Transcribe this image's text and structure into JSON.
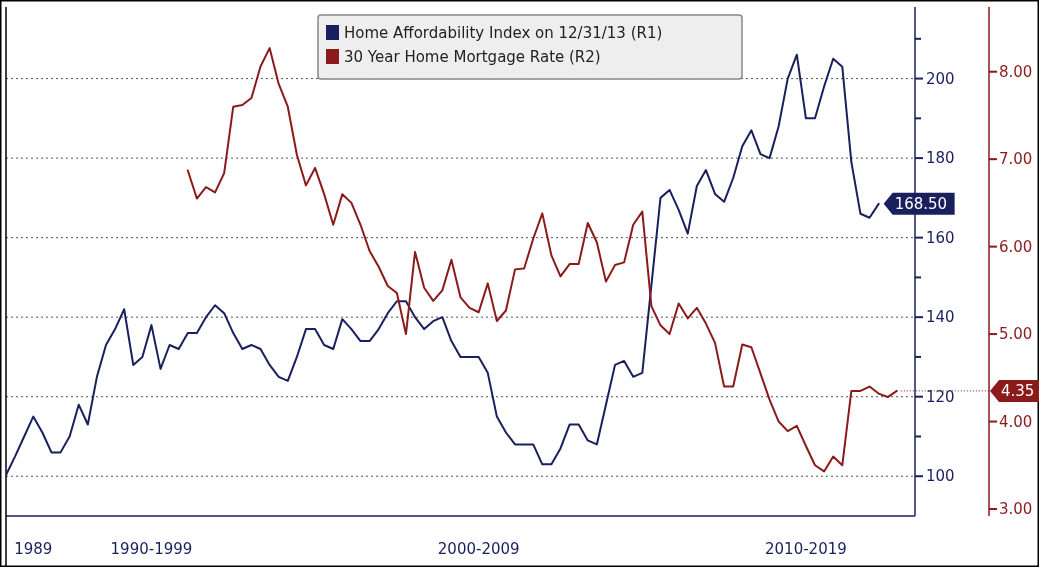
{
  "chart_data": {
    "type": "line",
    "categories": [
      null,
      null,
      null,
      "1989",
      null,
      null,
      null,
      null,
      null,
      null,
      null,
      null,
      null,
      null,
      null,
      null,
      "1990-1999",
      null,
      null,
      null,
      null,
      null,
      null,
      null,
      null,
      null,
      null,
      null,
      null,
      null,
      null,
      null,
      null,
      null,
      null,
      null,
      null,
      null,
      null,
      null,
      null,
      null,
      null,
      null,
      null,
      null,
      null,
      null,
      null,
      null,
      null,
      null,
      "2000-2009",
      null,
      null,
      null,
      null,
      null,
      null,
      null,
      null,
      null,
      null,
      null,
      null,
      null,
      null,
      null,
      null,
      null,
      null,
      null,
      null,
      null,
      null,
      null,
      null,
      null,
      null,
      null,
      null,
      null,
      null,
      null,
      null,
      null,
      null,
      null,
      "2010-2019",
      null,
      null,
      null,
      null,
      null,
      null,
      null,
      null,
      null,
      null,
      null,
      null
    ],
    "ylim": [
      90,
      218
    ],
    "yticks": [
      100,
      {
        "value": 110,
        "label": null
      },
      120,
      {
        "value": 130,
        "label": null
      },
      140,
      {
        "value": 150,
        "label": null
      },
      160,
      {
        "value": 170,
        "label": null
      },
      180,
      {
        "value": 190,
        "label": null
      },
      200,
      {
        "value": 210,
        "label": null
      }
    ],
    "y2lim": [
      2.92,
      8.74
    ],
    "y2ticks": [
      {
        "value": 3,
        "label": "3.00"
      },
      {
        "value": 4,
        "label": "4.00"
      },
      {
        "value": 5,
        "label": "5.00"
      },
      {
        "value": 6,
        "label": "6.00"
      },
      {
        "value": 7,
        "label": "7.00"
      },
      {
        "value": 8,
        "label": "8.00"
      }
    ],
    "grid": "y",
    "legend": "top",
    "series": [
      {
        "name": "Home Affordability Index on 12/31/13 (R1)",
        "color": "#1a1f5e",
        "values": [
          100.3,
          105,
          110,
          115,
          111,
          106,
          106,
          110,
          118,
          113,
          125,
          133,
          137,
          142,
          128,
          130,
          138,
          127,
          133,
          132,
          136,
          136,
          140,
          143,
          141,
          136,
          132,
          133,
          132,
          128,
          125,
          124,
          130,
          137,
          137,
          133,
          132,
          139.5,
          137,
          134,
          134,
          137,
          141,
          144,
          144,
          140,
          137,
          139,
          140,
          134,
          130,
          130,
          130,
          126,
          115,
          111,
          108,
          108,
          108,
          103,
          103,
          107,
          113,
          113,
          109,
          108,
          118,
          128,
          129,
          125,
          126,
          148,
          170,
          172,
          167,
          161,
          173,
          177,
          171,
          169,
          175,
          183,
          187,
          181,
          180,
          188,
          200,
          206,
          190,
          190,
          198,
          205,
          203,
          179,
          166,
          165,
          168.5,
          null,
          null,
          null,
          null
        ],
        "value_labels": [
          null,
          null,
          null,
          null,
          null,
          null,
          null,
          null,
          null,
          null,
          null,
          null,
          null,
          null,
          null,
          null,
          null,
          null,
          null,
          null,
          null,
          null,
          null,
          null,
          null,
          null,
          null,
          null,
          null,
          null,
          null,
          null,
          null,
          null,
          null,
          null,
          null,
          null,
          null,
          null,
          null,
          null,
          null,
          null,
          null,
          null,
          null,
          null,
          null,
          null,
          null,
          null,
          null,
          null,
          null,
          null,
          null,
          null,
          null,
          null,
          null,
          null,
          null,
          null,
          null,
          null,
          null,
          null,
          null,
          null,
          null,
          null,
          null,
          null,
          null,
          null,
          null,
          null,
          null,
          null,
          null,
          null,
          null,
          null,
          null,
          null,
          null,
          null,
          null,
          null,
          null,
          null,
          null,
          null,
          null,
          null,
          "168.50",
          null,
          null,
          null,
          null
        ]
      },
      {
        "name": "30 Year Home Mortgage Rate (R2)",
        "color": "#8b1a1a",
        "axis": "y2",
        "values": [
          null,
          null,
          null,
          null,
          null,
          null,
          null,
          null,
          null,
          null,
          null,
          null,
          null,
          null,
          null,
          null,
          null,
          null,
          null,
          null,
          6.87,
          6.55,
          6.68,
          6.62,
          6.84,
          7.6,
          7.62,
          7.7,
          8.06,
          8.27,
          7.86,
          7.6,
          7.05,
          6.7,
          6.9,
          6.6,
          6.25,
          6.6,
          6.5,
          6.25,
          5.95,
          5.77,
          5.55,
          5.47,
          5.0,
          5.94,
          5.53,
          5.38,
          5.5,
          5.85,
          5.42,
          5.3,
          5.25,
          5.58,
          5.15,
          5.27,
          5.74,
          5.75,
          6.09,
          6.38,
          5.9,
          5.66,
          5.8,
          5.8,
          6.27,
          6.05,
          5.6,
          5.79,
          5.82,
          6.25,
          6.4,
          5.32,
          5.1,
          5.0,
          5.35,
          5.18,
          5.3,
          5.12,
          4.9,
          4.4,
          4.4,
          4.88,
          4.85,
          4.55,
          4.25,
          4.0,
          3.89,
          3.95,
          3.72,
          3.5,
          3.43,
          3.6,
          3.5,
          4.35,
          4.35,
          4.4,
          4.32,
          4.28,
          4.35,
          null,
          null
        ],
        "value_labels": [
          null,
          null,
          null,
          null,
          null,
          null,
          null,
          null,
          null,
          null,
          null,
          null,
          null,
          null,
          null,
          null,
          null,
          null,
          null,
          null,
          null,
          null,
          null,
          null,
          null,
          null,
          null,
          null,
          null,
          null,
          null,
          null,
          null,
          null,
          null,
          null,
          null,
          null,
          null,
          null,
          null,
          null,
          null,
          null,
          null,
          null,
          null,
          null,
          null,
          null,
          null,
          null,
          null,
          null,
          null,
          null,
          null,
          null,
          null,
          null,
          null,
          null,
          null,
          null,
          null,
          null,
          null,
          null,
          null,
          null,
          null,
          null,
          null,
          null,
          null,
          null,
          null,
          null,
          null,
          null,
          null,
          null,
          null,
          null,
          null,
          null,
          null,
          null,
          null,
          null,
          null,
          null,
          null,
          null,
          null,
          null,
          null,
          null,
          "4.35",
          null,
          null
        ]
      }
    ]
  }
}
